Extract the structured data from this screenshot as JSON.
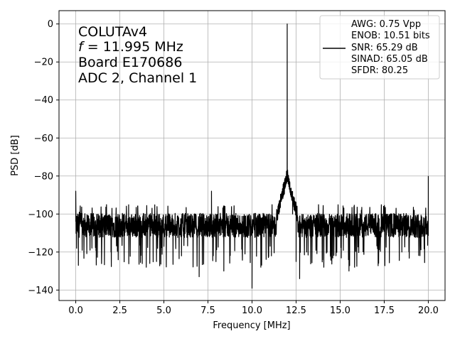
{
  "chart_data": {
    "type": "line",
    "xlabel": "Frequency [MHz]",
    "ylabel": "PSD [dB]",
    "xlim": [
      -0.95,
      20.95
    ],
    "ylim": [
      -145.5,
      7
    ],
    "xticks": [
      0.0,
      2.5,
      5.0,
      7.5,
      10.0,
      12.5,
      15.0,
      17.5,
      20.0
    ],
    "xtick_labels": [
      "0.0",
      "2.5",
      "5.0",
      "7.5",
      "10.0",
      "12.5",
      "15.0",
      "17.5",
      "20.0"
    ],
    "yticks": [
      0,
      -20,
      -40,
      -60,
      -80,
      -100,
      -120,
      -140
    ],
    "ytick_labels": [
      "0",
      "−20",
      "−40",
      "−60",
      "−80",
      "−100",
      "−120",
      "−140"
    ],
    "grid": true,
    "annotation": {
      "line1": "COLUTAv4",
      "line2_italic": "f",
      "line2_rest": " = 11.995 MHz",
      "line3": "Board E170686",
      "line4": "ADC 2, Channel 1"
    },
    "legend": {
      "position": "top-right",
      "lines": [
        "AWG: 0.75 Vpp",
        "ENOB: 10.51 bits",
        "SNR: 65.29 dB",
        "SINAD: 65.05 dB",
        "SFDR: 80.25"
      ],
      "line_color": "#000000"
    },
    "series": [
      {
        "color": "#000000",
        "noise_floor_mean": -106,
        "noise_floor_band": [
          -112,
          -97
        ],
        "points": [
          [
            0.0,
            -88
          ],
          [
            0.02,
            -108
          ],
          [
            0.05,
            -118
          ],
          [
            0.1,
            -101
          ],
          [
            0.15,
            -127
          ],
          [
            0.2,
            -99
          ],
          [
            2.0,
            -120
          ],
          [
            4.0,
            -128
          ],
          [
            4.2,
            -126
          ],
          [
            5.0,
            -117
          ],
          [
            6.0,
            -122
          ],
          [
            7.0,
            -133
          ],
          [
            7.7,
            -88
          ],
          [
            8.4,
            -130
          ],
          [
            9.6,
            -121
          ],
          [
            10.0,
            -139
          ],
          [
            10.5,
            -128
          ],
          [
            11.1,
            -122
          ],
          [
            11.5,
            -95
          ],
          [
            11.7,
            -90
          ],
          [
            11.85,
            -82
          ],
          [
            11.95,
            -80
          ],
          [
            11.995,
            0
          ],
          [
            12.05,
            -82
          ],
          [
            12.15,
            -88
          ],
          [
            12.3,
            -100
          ],
          [
            12.5,
            -125
          ],
          [
            12.7,
            -134
          ],
          [
            13.1,
            -120
          ],
          [
            14.0,
            -124
          ],
          [
            15.5,
            -130
          ],
          [
            16.2,
            -98
          ],
          [
            18.5,
            -120
          ],
          [
            19.2,
            -98
          ],
          [
            20.0,
            -80
          ]
        ]
      }
    ]
  }
}
